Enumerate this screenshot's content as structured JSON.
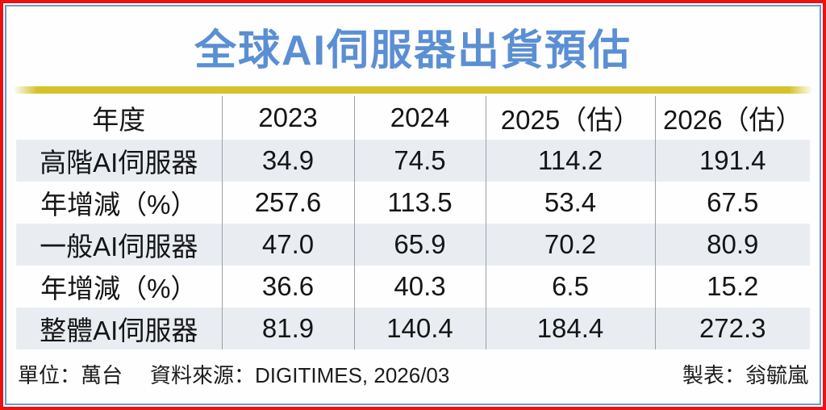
{
  "title": "全球AI伺服器出貨預估",
  "colors": {
    "outer_border": "#ee1111",
    "inner_border": "#6e9ac4",
    "title_blue": "#5b8fd3",
    "divider_gold": "#d6c229",
    "row_shade": "#e9edf2",
    "text": "#151515"
  },
  "chart_data": {
    "type": "table",
    "title": "全球AI伺服器出貨預估",
    "columns": [
      "年度",
      "2023",
      "2024",
      "2025（估）",
      "2026（估）"
    ],
    "rows": [
      {
        "label": "高階AI伺服器",
        "values": [
          34.9,
          74.5,
          114.2,
          191.4
        ]
      },
      {
        "label": "年增減（%）",
        "values": [
          257.6,
          113.5,
          53.4,
          67.5
        ]
      },
      {
        "label": "一般AI伺服器",
        "values": [
          47.0,
          65.9,
          70.2,
          80.9
        ]
      },
      {
        "label": "年增減（%）",
        "values": [
          36.6,
          40.3,
          6.5,
          15.2
        ]
      },
      {
        "label": "整體AI伺服器",
        "values": [
          81.9,
          140.4,
          184.4,
          272.3
        ]
      }
    ],
    "unit": "萬台",
    "source": "DIGITIMES, 2026/03"
  },
  "table": {
    "header": [
      "年度",
      "2023",
      "2024",
      "2025（估）",
      "2026（估）"
    ],
    "rows": [
      {
        "label": "高階AI伺服器",
        "values": [
          "34.9",
          "74.5",
          "114.2",
          "191.4"
        ]
      },
      {
        "label": "年增減（%）",
        "values": [
          "257.6",
          "113.5",
          "53.4",
          "67.5"
        ]
      },
      {
        "label": "一般AI伺服器",
        "values": [
          "47.0",
          "65.9",
          "70.2",
          "80.9"
        ]
      },
      {
        "label": "年增減（%）",
        "values": [
          "36.6",
          "40.3",
          "6.5",
          "15.2"
        ]
      },
      {
        "label": "整體AI伺服器",
        "values": [
          "81.9",
          "140.4",
          "184.4",
          "272.3"
        ]
      }
    ]
  },
  "footer": {
    "unit": "單位：萬台",
    "source": "資料來源：DIGITIMES, 2026/03",
    "credit": "製表：翁毓嵐"
  }
}
